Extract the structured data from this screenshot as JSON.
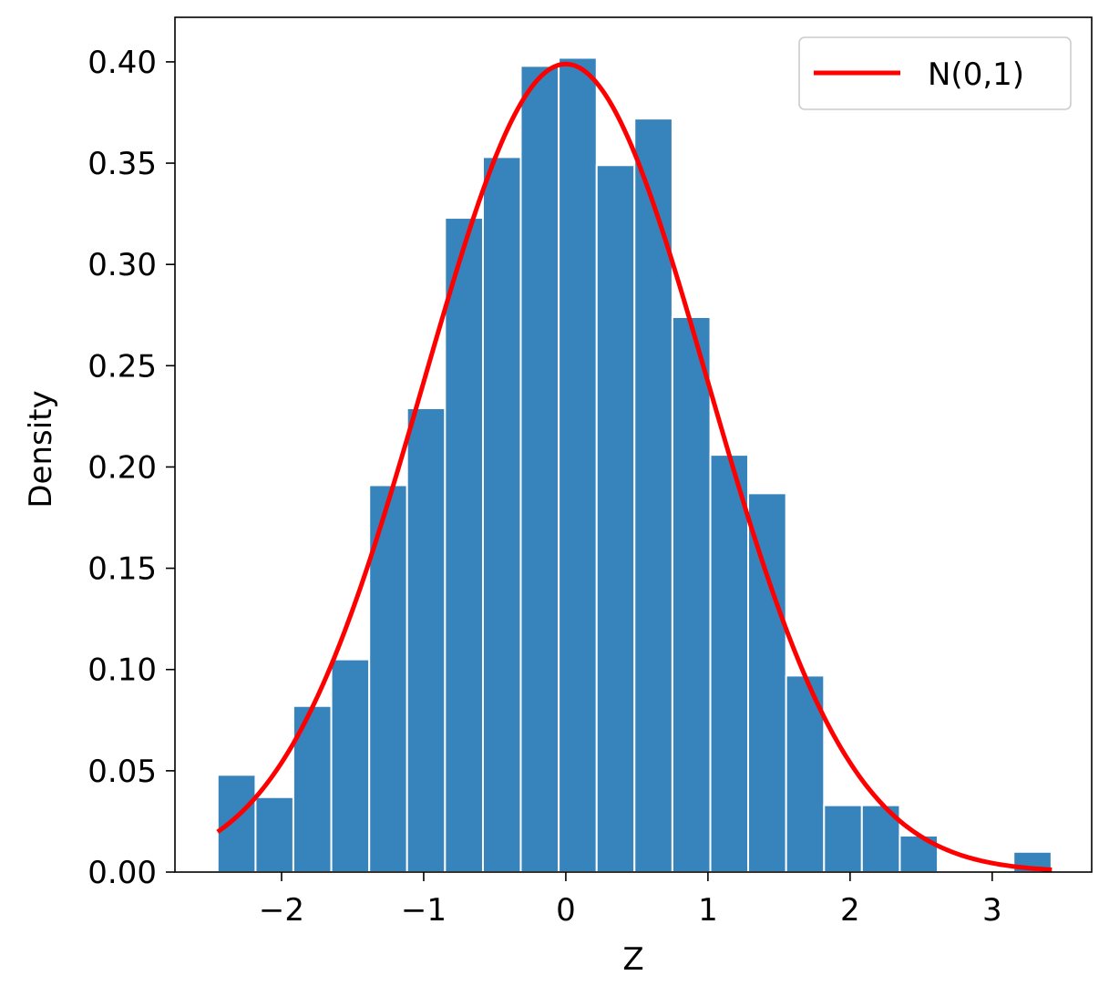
{
  "chart_data": {
    "type": "bar",
    "xlabel": "Z",
    "ylabel": "Density",
    "xlim": [
      -2.75,
      3.7
    ],
    "ylim": [
      0,
      0.422
    ],
    "bin_edges": [
      -2.45,
      -2.183,
      -1.917,
      -1.65,
      -1.383,
      -1.117,
      -0.85,
      -0.583,
      -0.317,
      -0.05,
      0.217,
      0.483,
      0.75,
      1.017,
      1.283,
      1.55,
      1.817,
      2.083,
      2.35,
      2.617,
      2.883,
      3.15,
      3.417
    ],
    "values": [
      0.048,
      0.037,
      0.082,
      0.105,
      0.191,
      0.229,
      0.323,
      0.353,
      0.398,
      0.402,
      0.349,
      0.372,
      0.274,
      0.206,
      0.187,
      0.097,
      0.033,
      0.033,
      0.018,
      0.0,
      0.0,
      0.01
    ],
    "xticks": [
      -2,
      -1,
      0,
      1,
      2,
      3
    ],
    "xtick_labels": [
      "−2",
      "−1",
      "0",
      "1",
      "2",
      "3"
    ],
    "yticks": [
      0.0,
      0.05,
      0.1,
      0.15,
      0.2,
      0.25,
      0.3,
      0.35,
      0.4
    ],
    "ytick_labels": [
      "0.00",
      "0.05",
      "0.10",
      "0.15",
      "0.20",
      "0.25",
      "0.30",
      "0.35",
      "0.40"
    ],
    "curve": {
      "name": "N(0,1)",
      "mean": 0,
      "std": 1,
      "x_range": [
        -2.45,
        3.42
      ]
    },
    "legend": {
      "position": "top-right",
      "entries": [
        "N(0,1)"
      ]
    },
    "grid": false,
    "colors": {
      "bars": "#3783bb",
      "curve": "#ff0000"
    }
  }
}
